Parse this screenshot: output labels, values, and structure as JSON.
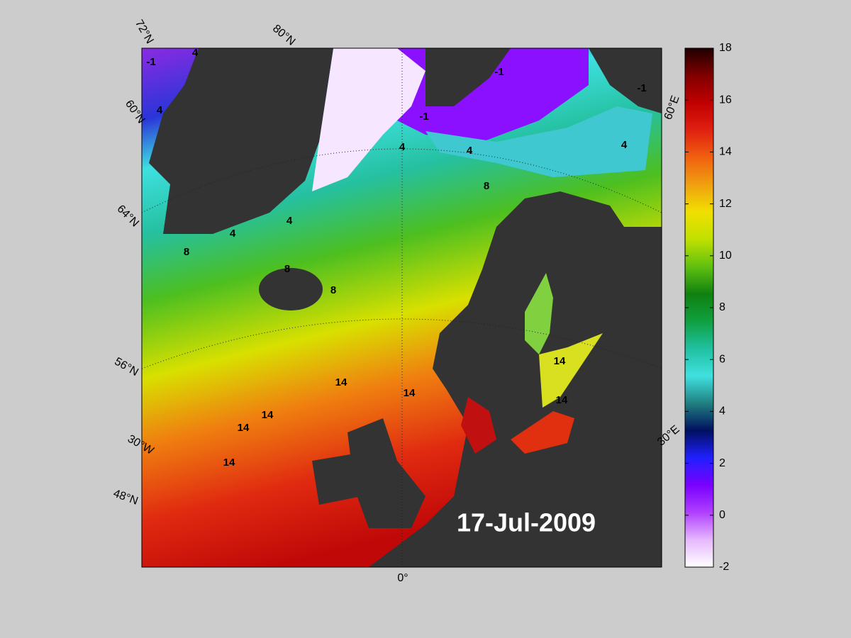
{
  "map": {
    "graticule_labels": [
      "72°N",
      "80°N",
      "60°N",
      "64°N",
      "56°N",
      "30°W",
      "48°N",
      "0°",
      "60°E",
      "30°E"
    ],
    "contour_labels": [
      -1,
      4,
      4,
      4,
      4,
      4,
      4,
      4,
      -1,
      -1,
      -1,
      8,
      8,
      8,
      8,
      14,
      14,
      14,
      14,
      14,
      14,
      14
    ],
    "date": "17-Jul-2009"
  },
  "colorbar": {
    "lim": [
      -2,
      18
    ],
    "ticks": [
      -2,
      0,
      2,
      4,
      6,
      8,
      10,
      12,
      14,
      16,
      18
    ],
    "colors": [
      "#ffffff",
      "#e6b8ff",
      "#b040ff",
      "#7a00ff",
      "#2020ff",
      "#001060",
      "#208080",
      "#40e0e0",
      "#20c0a0",
      "#10a040",
      "#108010",
      "#60c010",
      "#c0e000",
      "#f0e000",
      "#f0a010",
      "#f06010",
      "#e02010",
      "#c00000",
      "#800000",
      "#200000"
    ]
  }
}
